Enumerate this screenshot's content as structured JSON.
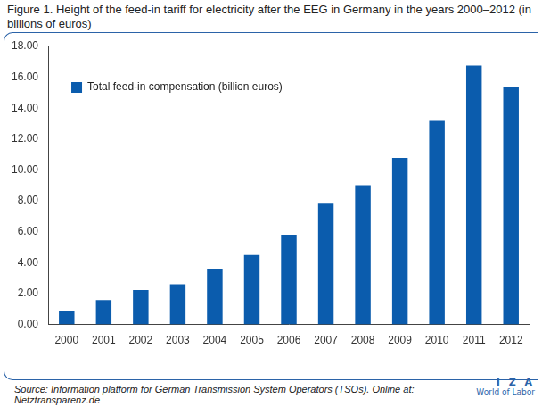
{
  "chart_data": {
    "type": "bar",
    "title": "Figure 1. Height of the feed-in tariff for electricity after the EEG in Germany in the years 2000–2012 (in billions of euros)",
    "categories": [
      "2000",
      "2001",
      "2002",
      "2003",
      "2004",
      "2005",
      "2006",
      "2007",
      "2008",
      "2009",
      "2010",
      "2011",
      "2012"
    ],
    "series": [
      {
        "name": "Total feed-in compensation (billion euros)",
        "color": "#0b5cad",
        "values": [
          0.88,
          1.58,
          2.23,
          2.61,
          3.61,
          4.5,
          5.81,
          7.88,
          9.02,
          10.78,
          13.18,
          16.76,
          15.4
        ]
      }
    ],
    "ylim": [
      0,
      18
    ],
    "yticks": [
      {
        "value": 0,
        "label": "0.00"
      },
      {
        "value": 2,
        "label": "2.00"
      },
      {
        "value": 4,
        "label": "4.00"
      },
      {
        "value": 6,
        "label": "6.00"
      },
      {
        "value": 8,
        "label": "8.00"
      },
      {
        "value": 10,
        "label": "10.00"
      },
      {
        "value": 12,
        "label": "12.00"
      },
      {
        "value": 14,
        "label": "14.00"
      },
      {
        "value": 16,
        "label": "16.00"
      },
      {
        "value": 18,
        "label": "18.00"
      }
    ],
    "grid": false,
    "legend": "upper left",
    "source": "Source: Information platform for German Transmission System Operators (TSOs). Online at: Netztransparenz.de",
    "logo": [
      "I Z A",
      "World of Labor"
    ]
  }
}
